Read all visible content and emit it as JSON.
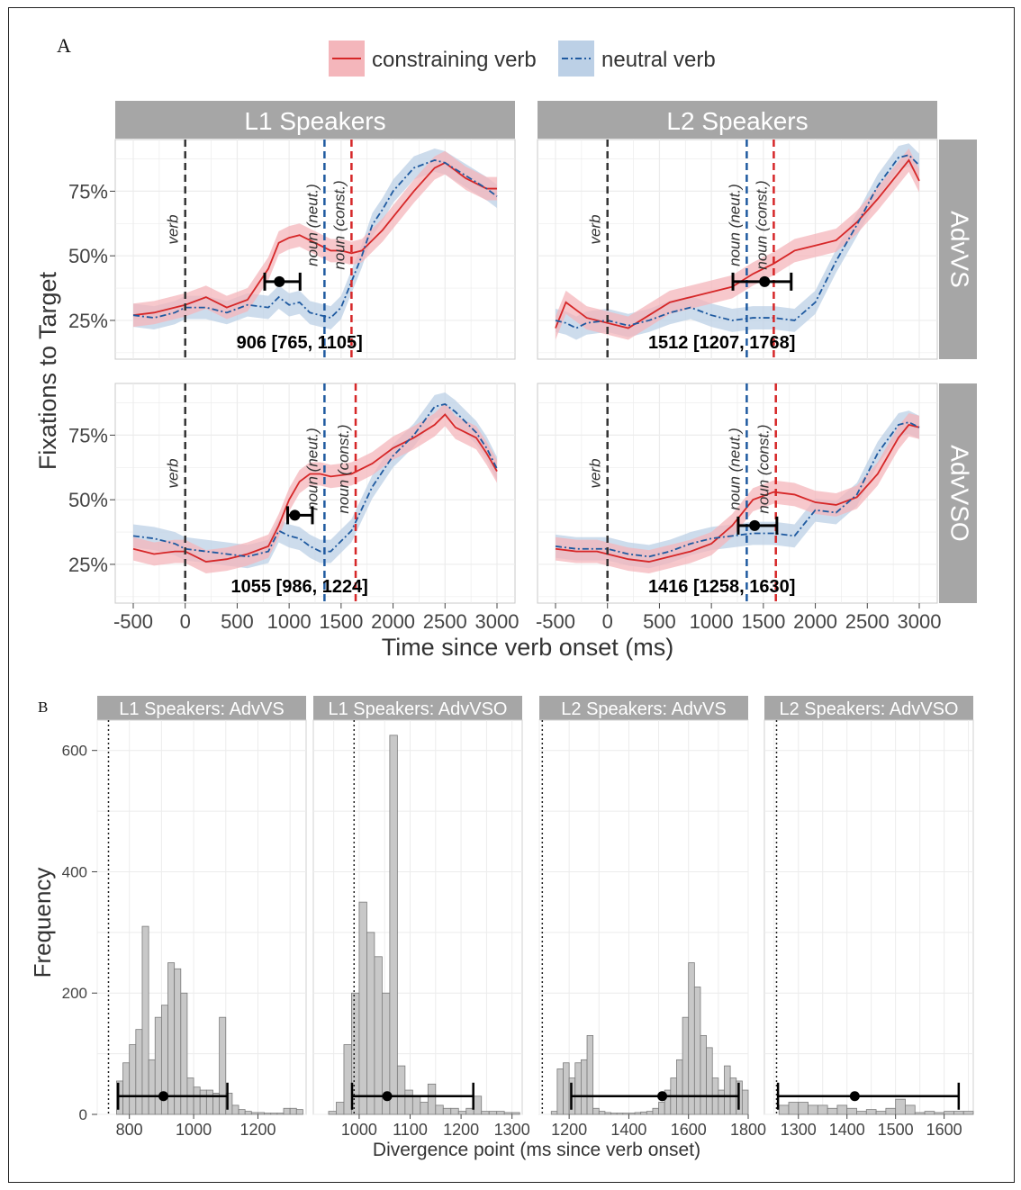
{
  "panel_a_label": "A",
  "panel_b_label": "B",
  "legend": [
    {
      "label": "constraining verb",
      "color": "#d62728",
      "fill": "#f4b6bb",
      "dash": "solid"
    },
    {
      "label": "neutral verb",
      "color": "#1f5aa0",
      "fill": "#bcd0e6",
      "dash": "dashdot"
    }
  ],
  "colors": {
    "strip": "#a6a6a6",
    "verb_line": "#333333",
    "neut_line": "#1f5aa0",
    "const_line": "#d62728",
    "bar_fill": "#c8c8c8",
    "bar_edge": "#7a7a7a"
  },
  "chart_data": [
    {
      "type": "line",
      "panel": "A",
      "col_strips": [
        "L1 Speakers",
        "L2 Speakers"
      ],
      "row_strips": [
        "AdvVS",
        "AdvVSO"
      ],
      "xlabel": "Time since verb onset (ms)",
      "ylabel": "Fixations to Target",
      "xlim": [
        -500,
        3000
      ],
      "ylim": [
        0.1,
        0.95
      ],
      "x_ticks": [
        "-500",
        "0",
        "500",
        "1000",
        "1500",
        "2000",
        "2500",
        "3000"
      ],
      "y_ticks": [
        "25%",
        "50%",
        "75%"
      ],
      "line_labels": [
        "verb",
        "noun (neut.)",
        "noun (const.)"
      ],
      "grid": true,
      "legend_position": "top",
      "facets": [
        {
          "col": 0,
          "row": 0,
          "verb_onset": 0,
          "noun_neut": 1340,
          "noun_const": 1600,
          "divergence": {
            "estimate": 906,
            "lower": 765,
            "upper": 1105,
            "y": 0.4,
            "label": "906 [765, 1105]"
          },
          "series": [
            {
              "name": "constraining verb",
              "x": [
                -500,
                -300,
                -100,
                0,
                200,
                400,
                600,
                800,
                900,
                1000,
                1100,
                1200,
                1300,
                1400,
                1500,
                1600,
                1700,
                1800,
                1900,
                2000,
                2200,
                2400,
                2500,
                2700,
                2900,
                3000
              ],
              "y": [
                0.27,
                0.28,
                0.3,
                0.31,
                0.34,
                0.3,
                0.33,
                0.45,
                0.55,
                0.57,
                0.58,
                0.56,
                0.54,
                0.52,
                0.52,
                0.51,
                0.52,
                0.56,
                0.6,
                0.65,
                0.75,
                0.84,
                0.86,
                0.8,
                0.76,
                0.76
              ]
            },
            {
              "name": "neutral verb",
              "x": [
                -500,
                -300,
                -100,
                0,
                200,
                400,
                600,
                800,
                900,
                1000,
                1100,
                1200,
                1300,
                1400,
                1500,
                1600,
                1700,
                1800,
                1900,
                2000,
                2200,
                2400,
                2500,
                2700,
                2900,
                3000
              ],
              "y": [
                0.27,
                0.26,
                0.28,
                0.3,
                0.3,
                0.28,
                0.31,
                0.3,
                0.34,
                0.31,
                0.32,
                0.28,
                0.27,
                0.26,
                0.3,
                0.4,
                0.5,
                0.62,
                0.68,
                0.75,
                0.84,
                0.87,
                0.86,
                0.81,
                0.76,
                0.73
              ]
            }
          ]
        },
        {
          "col": 1,
          "row": 0,
          "verb_onset": 0,
          "noun_neut": 1340,
          "noun_const": 1600,
          "divergence": {
            "estimate": 1512,
            "lower": 1207,
            "upper": 1768,
            "y": 0.4,
            "label": "1512 [1207, 1768]"
          },
          "series": [
            {
              "name": "constraining verb",
              "x": [
                -500,
                -400,
                -300,
                -200,
                0,
                200,
                400,
                600,
                800,
                1000,
                1200,
                1400,
                1600,
                1800,
                2000,
                2200,
                2400,
                2600,
                2800,
                2900,
                3000
              ],
              "y": [
                0.22,
                0.32,
                0.29,
                0.26,
                0.24,
                0.22,
                0.27,
                0.32,
                0.34,
                0.36,
                0.38,
                0.43,
                0.47,
                0.52,
                0.54,
                0.56,
                0.63,
                0.72,
                0.82,
                0.87,
                0.79
              ]
            },
            {
              "name": "neutral verb",
              "x": [
                -500,
                -400,
                -300,
                -200,
                0,
                200,
                400,
                600,
                800,
                1000,
                1200,
                1400,
                1600,
                1800,
                2000,
                2200,
                2400,
                2600,
                2800,
                2900,
                3000
              ],
              "y": [
                0.25,
                0.24,
                0.22,
                0.24,
                0.25,
                0.23,
                0.25,
                0.28,
                0.3,
                0.27,
                0.25,
                0.26,
                0.26,
                0.25,
                0.32,
                0.48,
                0.62,
                0.77,
                0.88,
                0.89,
                0.85
              ]
            }
          ]
        },
        {
          "col": 0,
          "row": 1,
          "verb_onset": 0,
          "noun_neut": 1340,
          "noun_const": 1640,
          "divergence": {
            "estimate": 1055,
            "lower": 986,
            "upper": 1224,
            "y": 0.44,
            "label": "1055 [986, 1224]"
          },
          "series": [
            {
              "name": "constraining verb",
              "x": [
                -500,
                -300,
                -100,
                0,
                200,
                400,
                600,
                800,
                900,
                1000,
                1100,
                1200,
                1300,
                1400,
                1600,
                1800,
                2000,
                2200,
                2400,
                2500,
                2600,
                2800,
                2900,
                3000
              ],
              "y": [
                0.31,
                0.29,
                0.3,
                0.3,
                0.26,
                0.27,
                0.29,
                0.32,
                0.4,
                0.5,
                0.57,
                0.6,
                0.6,
                0.59,
                0.6,
                0.64,
                0.7,
                0.74,
                0.79,
                0.83,
                0.78,
                0.74,
                0.68,
                0.61
              ]
            },
            {
              "name": "neutral verb",
              "x": [
                -500,
                -300,
                -100,
                0,
                200,
                400,
                600,
                800,
                900,
                1000,
                1100,
                1200,
                1300,
                1400,
                1600,
                1800,
                2000,
                2200,
                2400,
                2500,
                2600,
                2800,
                2900,
                3000
              ],
              "y": [
                0.36,
                0.35,
                0.33,
                0.31,
                0.3,
                0.29,
                0.28,
                0.3,
                0.38,
                0.36,
                0.35,
                0.32,
                0.3,
                0.3,
                0.38,
                0.55,
                0.67,
                0.75,
                0.86,
                0.87,
                0.84,
                0.76,
                0.7,
                0.62
              ]
            }
          ]
        },
        {
          "col": 1,
          "row": 1,
          "verb_onset": 0,
          "noun_neut": 1340,
          "noun_const": 1620,
          "divergence": {
            "estimate": 1416,
            "lower": 1258,
            "upper": 1630,
            "y": 0.4,
            "label": "1416 [1258, 1630]"
          },
          "series": [
            {
              "name": "constraining verb",
              "x": [
                -500,
                -300,
                -100,
                0,
                200,
                400,
                600,
                800,
                1000,
                1200,
                1400,
                1600,
                1800,
                2000,
                2200,
                2400,
                2600,
                2800,
                2900,
                3000
              ],
              "y": [
                0.31,
                0.3,
                0.3,
                0.29,
                0.27,
                0.26,
                0.28,
                0.3,
                0.33,
                0.4,
                0.5,
                0.53,
                0.52,
                0.49,
                0.48,
                0.51,
                0.6,
                0.74,
                0.79,
                0.78
              ]
            },
            {
              "name": "neutral verb",
              "x": [
                -500,
                -300,
                -100,
                0,
                200,
                400,
                600,
                800,
                1000,
                1200,
                1400,
                1600,
                1800,
                2000,
                2200,
                2400,
                2600,
                2800,
                2900,
                3000
              ],
              "y": [
                0.32,
                0.31,
                0.31,
                0.31,
                0.29,
                0.28,
                0.3,
                0.33,
                0.35,
                0.36,
                0.37,
                0.37,
                0.36,
                0.46,
                0.45,
                0.52,
                0.68,
                0.79,
                0.8,
                0.78
              ]
            }
          ]
        }
      ]
    },
    {
      "type": "bar",
      "panel": "B",
      "xlabel": "Divergence point (ms since verb onset)",
      "ylabel": "Frequency",
      "ylim": [
        0,
        650
      ],
      "y_ticks": [
        0,
        200,
        400,
        600
      ],
      "grid": true,
      "facets": [
        {
          "strip": "L1 Speakers: AdvVS",
          "xlim": [
            700,
            1350
          ],
          "x_ticks": [
            800,
            1000,
            1200
          ],
          "dotted_x": 735,
          "estimate": 906,
          "lower": 765,
          "upper": 1105,
          "errbar_y": 30,
          "bin_width": 20,
          "bin_starts": [
            760,
            780,
            800,
            820,
            840,
            860,
            880,
            900,
            920,
            940,
            960,
            980,
            1000,
            1020,
            1040,
            1060,
            1080,
            1100,
            1120,
            1140,
            1160,
            1180,
            1200,
            1220,
            1240,
            1260,
            1280,
            1300,
            1320
          ],
          "values": [
            55,
            85,
            115,
            140,
            310,
            90,
            160,
            180,
            250,
            240,
            200,
            60,
            45,
            40,
            40,
            35,
            160,
            35,
            15,
            8,
            5,
            3,
            3,
            2,
            2,
            2,
            10,
            10,
            8
          ]
        },
        {
          "strip": "L1 Speakers: AdvVSO",
          "xlim": [
            910,
            1320
          ],
          "x_ticks": [
            1000,
            1100,
            1200,
            1300
          ],
          "dotted_x": 990,
          "estimate": 1055,
          "lower": 986,
          "upper": 1224,
          "errbar_y": 30,
          "bin_width": 15,
          "bin_starts": [
            940,
            955,
            970,
            985,
            1000,
            1015,
            1030,
            1045,
            1060,
            1075,
            1090,
            1105,
            1120,
            1135,
            1150,
            1165,
            1180,
            1195,
            1210,
            1225,
            1240,
            1255,
            1270,
            1285,
            1300
          ],
          "values": [
            5,
            20,
            115,
            200,
            350,
            300,
            260,
            200,
            625,
            80,
            40,
            30,
            20,
            50,
            15,
            10,
            10,
            5,
            10,
            30,
            5,
            5,
            5,
            3,
            3
          ]
        },
        {
          "strip": "L2 Speakers: AdvVS",
          "xlim": [
            1100,
            1800
          ],
          "x_ticks": [
            1200,
            1400,
            1600,
            1800
          ],
          "dotted_x": 1110,
          "estimate": 1512,
          "lower": 1207,
          "upper": 1768,
          "errbar_y": 30,
          "bin_width": 20,
          "bin_starts": [
            1140,
            1160,
            1180,
            1200,
            1220,
            1240,
            1260,
            1280,
            1300,
            1320,
            1340,
            1360,
            1380,
            1400,
            1420,
            1440,
            1460,
            1480,
            1500,
            1520,
            1540,
            1560,
            1580,
            1600,
            1620,
            1640,
            1660,
            1680,
            1700,
            1720,
            1740,
            1760,
            1780
          ],
          "values": [
            5,
            75,
            85,
            60,
            85,
            90,
            130,
            10,
            5,
            3,
            2,
            2,
            2,
            2,
            3,
            4,
            5,
            10,
            20,
            40,
            60,
            90,
            160,
            250,
            210,
            130,
            110,
            60,
            40,
            80,
            60,
            55,
            40
          ]
        },
        {
          "strip": "L2 Speakers: AdvVSO",
          "xlim": [
            1230,
            1660
          ],
          "x_ticks": [
            1300,
            1400,
            1500,
            1600
          ],
          "dotted_x": 1255,
          "estimate": 1416,
          "lower": 1258,
          "upper": 1630,
          "errbar_y": 30,
          "bin_width": 20,
          "bin_starts": [
            1260,
            1280,
            1300,
            1320,
            1340,
            1360,
            1380,
            1400,
            1420,
            1440,
            1460,
            1480,
            1500,
            1520,
            1540,
            1560,
            1580,
            1600,
            1620,
            1640
          ],
          "values": [
            15,
            20,
            20,
            15,
            15,
            10,
            15,
            10,
            5,
            8,
            5,
            10,
            25,
            15,
            3,
            5,
            3,
            5,
            5,
            5
          ]
        }
      ]
    }
  ]
}
